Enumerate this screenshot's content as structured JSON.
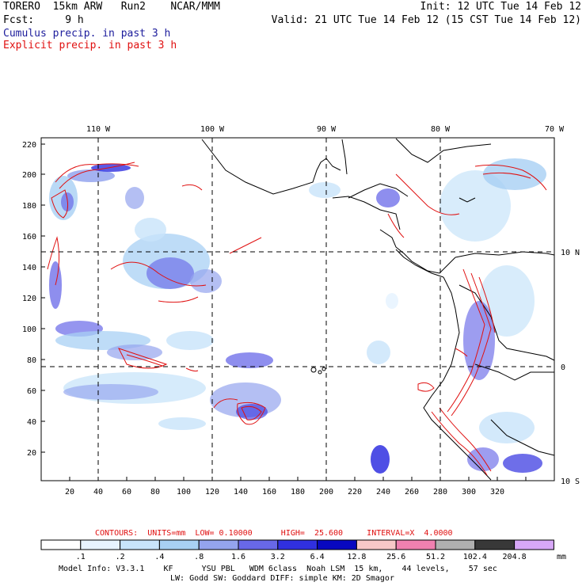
{
  "header": {
    "line1_left": "TORERO  15km ARW   Run2    NCAR/MMM",
    "line1_right": "Init: 12 UTC Tue 14 Feb 12",
    "line2_left": "Fcst:     9 h",
    "line2_right": "Valid: 21 UTC Tue 14 Feb 12 (15 CST Tue 14 Feb 12)",
    "line3": "Cumulus precip. in past 3 h",
    "line4": "Explicit precip. in past 3 h"
  },
  "map": {
    "top_lon_labels": [
      "110 W",
      "100 W",
      "90 W",
      "80 W",
      "70 W"
    ],
    "right_lat_labels": [
      "10 N",
      "0",
      "10 S"
    ],
    "y_ticks": [
      "220",
      "200",
      "180",
      "160",
      "140",
      "120",
      "100",
      "80",
      "60",
      "40",
      "20"
    ],
    "x_ticks": [
      "20",
      "40",
      "60",
      "80",
      "100",
      "120",
      "140",
      "160",
      "180",
      "200",
      "220",
      "240",
      "260",
      "280",
      "300",
      "320"
    ],
    "grid_style": "dashed",
    "colors": {
      "cumulus_fill": "#4848e0",
      "explicit_contour": "#e01010",
      "coast": "#000000"
    }
  },
  "legend": {
    "contours_line": "CONTOURS:  UNITS=mm  LOW= 0.10000      HIGH=  25.600     INTERVAL=X  4.0000",
    "units": "mm",
    "levels": [
      ".1",
      ".2",
      ".4",
      ".8",
      "1.6",
      "3.2",
      "6.4",
      "12.8",
      "25.6",
      "51.2",
      "102.4",
      "204.8"
    ],
    "colors": [
      "#ffffff",
      "#e8f4ff",
      "#c8e4fa",
      "#a8d0f4",
      "#94a4ee",
      "#6868e8",
      "#3030e0",
      "#0808c0",
      "#f8c8c8",
      "#f080b0",
      "#b0b0b0",
      "#383838",
      "#d8a8f8"
    ]
  },
  "footer": {
    "line1": "Model Info: V3.3.1    KF      YSU PBL   WDM 6class  Noah LSM  15 km,    44 levels,    57 sec",
    "line2": "LW: Godd SW: Goddard DIFF: simple KM: 2D Smagor"
  }
}
